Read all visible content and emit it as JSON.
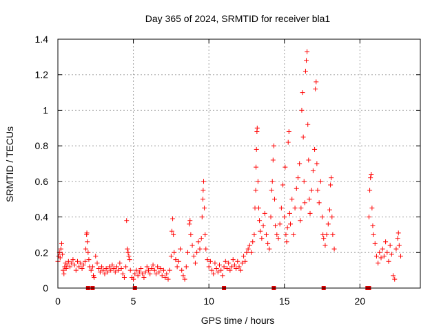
{
  "chart_data": {
    "type": "scatter",
    "title": "Day 365 of 2024, SRMTID for receiver bla1",
    "xlabel": "GPS time / hours",
    "ylabel": "SRMTID / TECUs",
    "xlim": [
      0,
      24
    ],
    "ylim": [
      0,
      1.4
    ],
    "x_ticks": [
      0,
      5,
      10,
      15,
      20
    ],
    "x_tick_labels": [
      "0",
      "5",
      "10",
      "15",
      "20"
    ],
    "y_ticks": [
      0,
      0.2,
      0.4,
      0.6,
      0.8,
      1.0,
      1.2,
      1.4
    ],
    "y_tick_labels": [
      "0",
      "0.2",
      "0.4",
      "0.6",
      "0.8",
      "1",
      "1.2",
      "1.4"
    ],
    "grid": true,
    "marker": "+",
    "color": "#ff0000",
    "baseline_marker_color": "#dd0000",
    "baseline_markers_x": [
      2.0,
      2.3,
      5.1,
      11.0,
      14.3,
      17.6,
      20.5,
      20.6
    ],
    "series": [
      {
        "name": "bla1",
        "points": [
          [
            0.0,
            0.15
          ],
          [
            0.05,
            0.18
          ],
          [
            0.1,
            0.2
          ],
          [
            0.15,
            0.17
          ],
          [
            0.2,
            0.22
          ],
          [
            0.25,
            0.25
          ],
          [
            0.3,
            0.19
          ],
          [
            0.35,
            0.1
          ],
          [
            0.4,
            0.08
          ],
          [
            0.45,
            0.12
          ],
          [
            0.5,
            0.14
          ],
          [
            0.55,
            0.11
          ],
          [
            0.6,
            0.13
          ],
          [
            0.7,
            0.15
          ],
          [
            0.8,
            0.12
          ],
          [
            0.9,
            0.14
          ],
          [
            1.0,
            0.16
          ],
          [
            1.1,
            0.13
          ],
          [
            1.2,
            0.1
          ],
          [
            1.3,
            0.15
          ],
          [
            1.4,
            0.12
          ],
          [
            1.5,
            0.14
          ],
          [
            1.6,
            0.11
          ],
          [
            1.7,
            0.13
          ],
          [
            1.8,
            0.15
          ],
          [
            1.85,
            0.22
          ],
          [
            1.9,
            0.3
          ],
          [
            1.92,
            0.31
          ],
          [
            1.95,
            0.26
          ],
          [
            2.0,
            0.2
          ],
          [
            2.05,
            0.16
          ],
          [
            2.1,
            0.12
          ],
          [
            2.2,
            0.1
          ],
          [
            2.3,
            0.12
          ],
          [
            2.35,
            0.07
          ],
          [
            2.4,
            0.06
          ],
          [
            2.5,
            0.18
          ],
          [
            2.6,
            0.14
          ],
          [
            2.7,
            0.11
          ],
          [
            2.8,
            0.09
          ],
          [
            2.9,
            0.12
          ],
          [
            3.0,
            0.1
          ],
          [
            3.1,
            0.08
          ],
          [
            3.2,
            0.11
          ],
          [
            3.3,
            0.09
          ],
          [
            3.4,
            0.12
          ],
          [
            3.5,
            0.1
          ],
          [
            3.6,
            0.13
          ],
          [
            3.7,
            0.11
          ],
          [
            3.8,
            0.09
          ],
          [
            3.9,
            0.12
          ],
          [
            4.0,
            0.1
          ],
          [
            4.1,
            0.14
          ],
          [
            4.2,
            0.11
          ],
          [
            4.3,
            0.08
          ],
          [
            4.4,
            0.06
          ],
          [
            4.5,
            0.12
          ],
          [
            4.55,
            0.38
          ],
          [
            4.6,
            0.22
          ],
          [
            4.65,
            0.2
          ],
          [
            4.7,
            0.18
          ],
          [
            4.75,
            0.16
          ],
          [
            4.8,
            0.1
          ],
          [
            4.9,
            0.06
          ],
          [
            5.0,
            0.05
          ],
          [
            5.1,
            0.08
          ],
          [
            5.2,
            0.1
          ],
          [
            5.3,
            0.07
          ],
          [
            5.4,
            0.09
          ],
          [
            5.5,
            0.11
          ],
          [
            5.6,
            0.08
          ],
          [
            5.7,
            0.06
          ],
          [
            5.8,
            0.09
          ],
          [
            5.9,
            0.12
          ],
          [
            6.0,
            0.1
          ],
          [
            6.1,
            0.08
          ],
          [
            6.2,
            0.11
          ],
          [
            6.3,
            0.13
          ],
          [
            6.4,
            0.1
          ],
          [
            6.5,
            0.08
          ],
          [
            6.6,
            0.12
          ],
          [
            6.7,
            0.09
          ],
          [
            6.8,
            0.11
          ],
          [
            6.9,
            0.07
          ],
          [
            7.0,
            0.1
          ],
          [
            7.1,
            0.06
          ],
          [
            7.2,
            0.08
          ],
          [
            7.3,
            0.05
          ],
          [
            7.4,
            0.1
          ],
          [
            7.5,
            0.18
          ],
          [
            7.55,
            0.32
          ],
          [
            7.6,
            0.39
          ],
          [
            7.65,
            0.3
          ],
          [
            7.7,
            0.2
          ],
          [
            7.8,
            0.16
          ],
          [
            7.9,
            0.12
          ],
          [
            8.0,
            0.15
          ],
          [
            8.1,
            0.22
          ],
          [
            8.2,
            0.1
          ],
          [
            8.3,
            0.07
          ],
          [
            8.4,
            0.05
          ],
          [
            8.5,
            0.12
          ],
          [
            8.6,
            0.2
          ],
          [
            8.7,
            0.36
          ],
          [
            8.75,
            0.38
          ],
          [
            8.8,
            0.3
          ],
          [
            8.9,
            0.24
          ],
          [
            9.0,
            0.18
          ],
          [
            9.1,
            0.14
          ],
          [
            9.2,
            0.2
          ],
          [
            9.3,
            0.26
          ],
          [
            9.4,
            0.22
          ],
          [
            9.5,
            0.28
          ],
          [
            9.55,
            0.4
          ],
          [
            9.6,
            0.5
          ],
          [
            9.62,
            0.55
          ],
          [
            9.65,
            0.6
          ],
          [
            9.7,
            0.45
          ],
          [
            9.75,
            0.3
          ],
          [
            9.8,
            0.22
          ],
          [
            9.9,
            0.16
          ],
          [
            10.0,
            0.12
          ],
          [
            10.1,
            0.15
          ],
          [
            10.2,
            0.1
          ],
          [
            10.3,
            0.08
          ],
          [
            10.4,
            0.14
          ],
          [
            10.5,
            0.11
          ],
          [
            10.6,
            0.09
          ],
          [
            10.7,
            0.13
          ],
          [
            10.8,
            0.1
          ],
          [
            10.9,
            0.07
          ],
          [
            11.0,
            0.12
          ],
          [
            11.1,
            0.15
          ],
          [
            11.2,
            0.11
          ],
          [
            11.3,
            0.14
          ],
          [
            11.4,
            0.1
          ],
          [
            11.5,
            0.12
          ],
          [
            11.6,
            0.16
          ],
          [
            11.7,
            0.13
          ],
          [
            11.8,
            0.11
          ],
          [
            11.9,
            0.15
          ],
          [
            12.0,
            0.12
          ],
          [
            12.1,
            0.1
          ],
          [
            12.2,
            0.14
          ],
          [
            12.3,
            0.18
          ],
          [
            12.4,
            0.15
          ],
          [
            12.5,
            0.2
          ],
          [
            12.6,
            0.22
          ],
          [
            12.7,
            0.24
          ],
          [
            12.8,
            0.2
          ],
          [
            12.9,
            0.26
          ],
          [
            13.0,
            0.3
          ],
          [
            13.05,
            0.45
          ],
          [
            13.1,
            0.55
          ],
          [
            13.12,
            0.68
          ],
          [
            13.15,
            0.78
          ],
          [
            13.18,
            0.88
          ],
          [
            13.2,
            0.9
          ],
          [
            13.25,
            0.6
          ],
          [
            13.3,
            0.45
          ],
          [
            13.35,
            0.38
          ],
          [
            13.4,
            0.32
          ],
          [
            13.5,
            0.28
          ],
          [
            13.6,
            0.35
          ],
          [
            13.7,
            0.42
          ],
          [
            13.8,
            0.3
          ],
          [
            13.9,
            0.25
          ],
          [
            14.0,
            0.22
          ],
          [
            14.1,
            0.4
          ],
          [
            14.15,
            0.55
          ],
          [
            14.2,
            0.6
          ],
          [
            14.25,
            0.72
          ],
          [
            14.3,
            0.8
          ],
          [
            14.35,
            0.5
          ],
          [
            14.4,
            0.35
          ],
          [
            14.5,
            0.3
          ],
          [
            14.6,
            0.28
          ],
          [
            14.7,
            0.36
          ],
          [
            14.8,
            0.45
          ],
          [
            14.9,
            0.58
          ],
          [
            15.0,
            0.4
          ],
          [
            15.05,
            0.68
          ],
          [
            15.1,
            0.3
          ],
          [
            15.15,
            0.26
          ],
          [
            15.2,
            0.34
          ],
          [
            15.25,
            0.82
          ],
          [
            15.3,
            0.88
          ],
          [
            15.35,
            0.42
          ],
          [
            15.4,
            0.36
          ],
          [
            15.5,
            0.5
          ],
          [
            15.6,
            0.3
          ],
          [
            15.7,
            0.45
          ],
          [
            15.8,
            0.56
          ],
          [
            15.9,
            0.62
          ],
          [
            16.0,
            0.7
          ],
          [
            16.05,
            0.38
          ],
          [
            16.1,
            0.45
          ],
          [
            16.15,
            1.0
          ],
          [
            16.2,
            1.1
          ],
          [
            16.25,
            0.85
          ],
          [
            16.3,
            0.6
          ],
          [
            16.35,
            0.48
          ],
          [
            16.4,
            1.22
          ],
          [
            16.45,
            1.28
          ],
          [
            16.5,
            1.33
          ],
          [
            16.55,
            0.92
          ],
          [
            16.6,
            0.72
          ],
          [
            16.65,
            0.5
          ],
          [
            16.7,
            0.42
          ],
          [
            16.8,
            0.55
          ],
          [
            16.9,
            0.66
          ],
          [
            17.0,
            0.78
          ],
          [
            17.05,
            1.12
          ],
          [
            17.1,
            1.16
          ],
          [
            17.15,
            0.7
          ],
          [
            17.2,
            0.55
          ],
          [
            17.3,
            0.48
          ],
          [
            17.4,
            0.6
          ],
          [
            17.5,
            0.4
          ],
          [
            17.55,
            0.3
          ],
          [
            17.6,
            0.28
          ],
          [
            17.7,
            0.24
          ],
          [
            17.8,
            0.3
          ],
          [
            17.9,
            0.36
          ],
          [
            18.0,
            0.44
          ],
          [
            18.05,
            0.58
          ],
          [
            18.1,
            0.62
          ],
          [
            18.15,
            0.4
          ],
          [
            18.2,
            0.3
          ],
          [
            18.3,
            0.22
          ],
          [
            20.6,
            0.4
          ],
          [
            20.65,
            0.55
          ],
          [
            20.7,
            0.62
          ],
          [
            20.75,
            0.64
          ],
          [
            20.8,
            0.45
          ],
          [
            20.85,
            0.35
          ],
          [
            20.9,
            0.3
          ],
          [
            21.0,
            0.25
          ],
          [
            21.1,
            0.18
          ],
          [
            21.2,
            0.14
          ],
          [
            21.3,
            0.2
          ],
          [
            21.4,
            0.17
          ],
          [
            21.5,
            0.22
          ],
          [
            21.6,
            0.18
          ],
          [
            21.7,
            0.26
          ],
          [
            21.8,
            0.2
          ],
          [
            21.9,
            0.15
          ],
          [
            22.0,
            0.24
          ],
          [
            22.1,
            0.19
          ],
          [
            22.2,
            0.07
          ],
          [
            22.3,
            0.05
          ],
          [
            22.4,
            0.22
          ],
          [
            22.5,
            0.28
          ],
          [
            22.55,
            0.31
          ],
          [
            22.6,
            0.24
          ],
          [
            22.7,
            0.18
          ]
        ]
      }
    ]
  }
}
